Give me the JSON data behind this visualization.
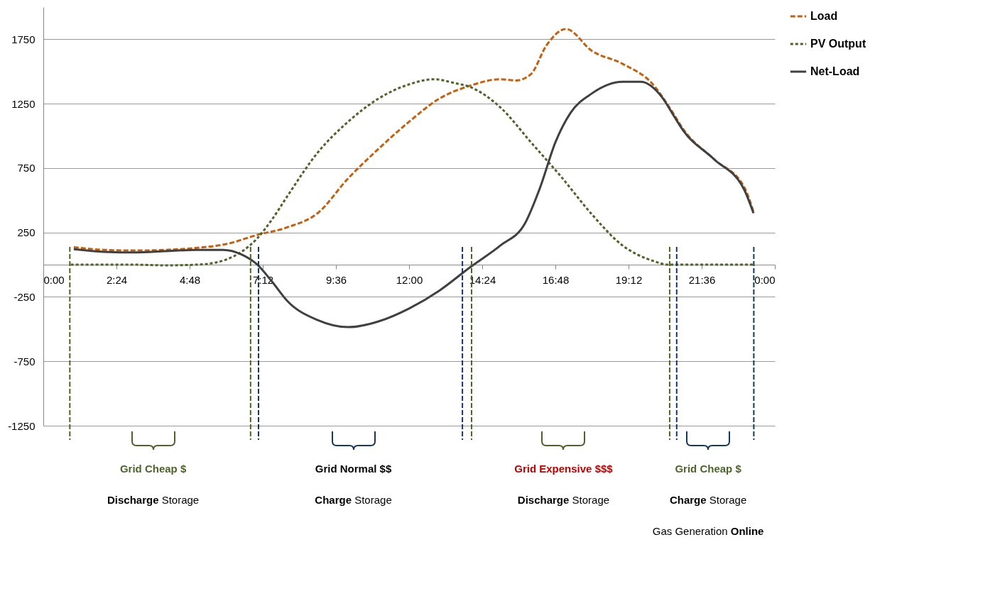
{
  "chart_data": {
    "type": "line",
    "xlim": [
      0,
      24
    ],
    "ylim": [
      -1250,
      2000
    ],
    "xticks": [
      {
        "value": 0,
        "label": "0:00"
      },
      {
        "value": 2.4,
        "label": "2:24"
      },
      {
        "value": 4.8,
        "label": "4:48"
      },
      {
        "value": 7.2,
        "label": "7:12"
      },
      {
        "value": 9.6,
        "label": "9:36"
      },
      {
        "value": 12,
        "label": "12:00"
      },
      {
        "value": 14.4,
        "label": "14:24"
      },
      {
        "value": 16.8,
        "label": "16:48"
      },
      {
        "value": 19.2,
        "label": "19:12"
      },
      {
        "value": 21.6,
        "label": "21:36"
      },
      {
        "value": 24,
        "label": "0:00"
      }
    ],
    "yticks": [
      -1250,
      -750,
      -250,
      250,
      750,
      1250,
      1750
    ],
    "grid": "y",
    "legend": "right",
    "series": [
      {
        "name": "Load",
        "color": "#c5600f",
        "line_style": "dashed",
        "x": [
          1,
          2,
          3,
          4,
          5,
          6,
          7,
          8,
          9,
          10,
          11,
          12,
          13,
          14,
          15,
          15.5,
          16,
          16.5,
          17.15,
          18,
          19,
          20,
          20.6,
          21,
          22,
          23,
          23.3
        ],
        "values": [
          135,
          115,
          110,
          115,
          130,
          160,
          230,
          290,
          400,
          670,
          900,
          1110,
          1290,
          1390,
          1440,
          1430,
          1480,
          1700,
          1830,
          1660,
          1560,
          1400,
          1200,
          1050,
          820,
          600,
          410
        ]
      },
      {
        "name": "PV Output",
        "color": "#4f6228",
        "line_style": "dotted",
        "x": [
          0.9,
          2,
          3,
          4,
          5,
          5.5,
          6,
          6.5,
          7,
          7.5,
          8,
          9,
          10,
          11,
          12,
          12.8,
          13.5,
          14,
          15,
          16,
          17,
          18,
          19,
          20,
          20.5,
          21.5,
          22.5,
          23.3
        ],
        "values": [
          0,
          0,
          0,
          -5,
          0,
          10,
          40,
          100,
          200,
          350,
          530,
          870,
          1110,
          1290,
          1400,
          1440,
          1410,
          1380,
          1220,
          950,
          680,
          390,
          150,
          30,
          0,
          0,
          0,
          0
        ]
      },
      {
        "name": "Net-Load",
        "color": "#404040",
        "line_style": "solid",
        "x": [
          1,
          2,
          3,
          4,
          5,
          5.9,
          6.5,
          7,
          7.5,
          8,
          9,
          10,
          11,
          12,
          13,
          14,
          15,
          15.8,
          16.3,
          16.8,
          17.3,
          18,
          19,
          19.6,
          20.3,
          20.7,
          21,
          22,
          23,
          23.3
        ],
        "values": [
          120,
          100,
          95,
          105,
          115,
          115,
          80,
          5,
          -130,
          -280,
          -430,
          -485,
          -440,
          -340,
          -200,
          -20,
          150,
          320,
          600,
          950,
          1180,
          1330,
          1420,
          1420,
          1300,
          1150,
          1040,
          820,
          580,
          400
        ]
      }
    ],
    "ref_lines": [
      {
        "axis": "x",
        "value": 0.87,
        "color": "#4f6228",
        "line_style": "dashed"
      },
      {
        "axis": "x",
        "value": 6.8,
        "color": "#4f6228",
        "line_style": "dashed"
      },
      {
        "axis": "x",
        "value": 7.06,
        "color": "#17375e",
        "line_style": "dashed"
      },
      {
        "axis": "x",
        "value": 13.75,
        "color": "#17375e",
        "line_style": "dashed"
      },
      {
        "axis": "x",
        "value": 14.05,
        "color": "#4f6228",
        "line_style": "dashed"
      },
      {
        "axis": "x",
        "value": 20.55,
        "color": "#4f6228",
        "line_style": "dashed"
      },
      {
        "axis": "x",
        "value": 20.78,
        "color": "#17375e",
        "line_style": "dashed"
      },
      {
        "axis": "x",
        "value": 23.31,
        "color": "#17375e",
        "line_style": "dashed"
      }
    ],
    "annotations": [
      "Grid Cheap $",
      "Discharge Storage",
      "Grid Normal $$",
      "Charge Storage",
      "Grid Expensive $$$",
      "Discharge Storage",
      "Grid Cheap $",
      "Charge Storage",
      "Gas Generation Online"
    ]
  }
}
